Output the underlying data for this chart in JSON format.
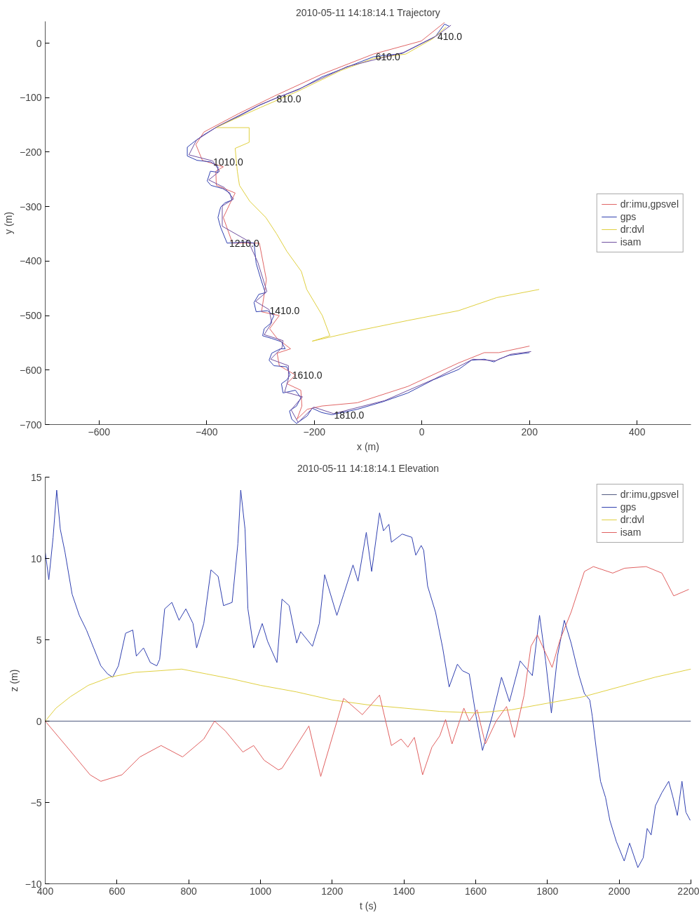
{
  "chart_data": [
    {
      "type": "line",
      "title": "2010-05-11 14:18:14.1 Trajectory",
      "xlabel": "x (m)",
      "ylabel": "y (m)",
      "xlim": [
        -700,
        500
      ],
      "ylim": [
        -700,
        40
      ],
      "xticks": [
        -600,
        -400,
        -200,
        0,
        200,
        400
      ],
      "yticks": [
        -700,
        -600,
        -500,
        -400,
        -300,
        -200,
        -100,
        0
      ],
      "legend": "right",
      "series": [
        {
          "name": "dr:imu,gpsvel",
          "color": "#e06666",
          "x": [
            42,
            -1,
            -90,
            -186,
            -274,
            -340,
            -405,
            -420,
            -408,
            -369,
            -383,
            -382,
            -347,
            -356,
            -369,
            -352,
            -302,
            -289,
            -293,
            -298,
            -265,
            -283,
            -269,
            -244,
            -269,
            -265,
            -235,
            -251,
            -225,
            -223,
            -232,
            -213,
            -186,
            -120,
            -26,
            68,
            116,
            143,
            200
          ],
          "values": [
            38,
            4,
            -20,
            -57,
            -97,
            -129,
            -163,
            -186,
            -215,
            -227,
            -235,
            -261,
            -275,
            -293,
            -320,
            -367,
            -367,
            -434,
            -461,
            -493,
            -500,
            -524,
            -542,
            -561,
            -569,
            -592,
            -609,
            -625,
            -637,
            -666,
            -690,
            -672,
            -666,
            -660,
            -630,
            -587,
            -568,
            -568,
            -556
          ]
        },
        {
          "name": "gps",
          "color": "#3040b0",
          "x": [
            51,
            42,
            25,
            -1,
            -37,
            -90,
            -142,
            -186,
            -229,
            -274,
            -304,
            -340,
            -383,
            -405,
            -422,
            -436,
            -436,
            -418,
            -392,
            -379,
            -379,
            -393,
            -399,
            -392,
            -370,
            -357,
            -353,
            -366,
            -374,
            -379,
            -374,
            -362,
            -326,
            -312,
            -308,
            -299,
            -291,
            -303,
            -312,
            -308,
            -287,
            -275,
            -282,
            -293,
            -296,
            -279,
            -261,
            -254,
            -263,
            -279,
            -284,
            -275,
            -251,
            -245,
            -251,
            -261,
            -258,
            -235,
            -225,
            -233,
            -246,
            -242,
            -233,
            -213,
            -204,
            -186,
            -167,
            -120,
            -72,
            -26,
            21,
            68,
            92,
            116,
            134,
            143,
            162,
            200
          ],
          "values": [
            31,
            35,
            12,
            -1,
            -19,
            -25,
            -45,
            -62,
            -85,
            -102,
            -115,
            -134,
            -155,
            -168,
            -180,
            -191,
            -207,
            -215,
            -218,
            -227,
            -237,
            -235,
            -253,
            -261,
            -267,
            -275,
            -288,
            -293,
            -301,
            -320,
            -338,
            -367,
            -365,
            -367,
            -404,
            -434,
            -458,
            -461,
            -476,
            -493,
            -491,
            -500,
            -515,
            -524,
            -537,
            -542,
            -548,
            -561,
            -561,
            -569,
            -582,
            -592,
            -594,
            -609,
            -618,
            -625,
            -642,
            -637,
            -651,
            -666,
            -675,
            -690,
            -698,
            -684,
            -670,
            -678,
            -682,
            -672,
            -658,
            -642,
            -618,
            -599,
            -582,
            -580,
            -585,
            -580,
            -573,
            -568
          ]
        },
        {
          "name": "dr:dvl",
          "color": "#e0d040",
          "x": [
            45,
            20,
            -30,
            -90,
            -150,
            -230,
            -300,
            -350,
            -383,
            -321,
            -321,
            -347,
            -343,
            -339,
            -320,
            -290,
            -270,
            -251,
            -224,
            -214,
            -185,
            -171,
            -204,
            -120,
            -26,
            68,
            139,
            218
          ],
          "values": [
            30,
            8,
            -20,
            -28,
            -50,
            -88,
            -118,
            -140,
            -155,
            -155,
            -182,
            -193,
            -235,
            -261,
            -290,
            -320,
            -350,
            -382,
            -419,
            -452,
            -500,
            -537,
            -547,
            -528,
            -509,
            -491,
            -467,
            -452
          ]
        },
        {
          "name": "isam",
          "color": "#7050a0",
          "x": [
            54,
            28,
            -34,
            -139,
            -226,
            -301,
            -380,
            -419,
            -433,
            -389,
            -376,
            -396,
            -367,
            -350,
            -371,
            -371,
            -323,
            -305,
            -288,
            -309,
            -284,
            -279,
            -293,
            -258,
            -260,
            -281,
            -248,
            -248,
            -255,
            -222,
            -243,
            -230,
            -201,
            -164,
            -69,
            24,
            95,
            137,
            165,
            203
          ],
          "values": [
            33,
            14,
            -17,
            -43,
            -83,
            -113,
            -153,
            -178,
            -205,
            -216,
            -235,
            -251,
            -265,
            -286,
            -299,
            -336,
            -363,
            -402,
            -456,
            -474,
            -489,
            -513,
            -535,
            -546,
            -559,
            -580,
            -592,
            -616,
            -640,
            -649,
            -673,
            -696,
            -668,
            -680,
            -656,
            -616,
            -580,
            -583,
            -571,
            -566
          ]
        }
      ],
      "annotations": [
        {
          "text": "410.0",
          "x": 25,
          "y": 12
        },
        {
          "text": "610.0",
          "x": -90,
          "y": -25
        },
        {
          "text": "810.0",
          "x": -274,
          "y": -102
        },
        {
          "text": "1010.0",
          "x": -392,
          "y": -218
        },
        {
          "text": "1210.0",
          "x": -362,
          "y": -367
        },
        {
          "text": "1410.0",
          "x": -287,
          "y": -491
        },
        {
          "text": "1610.0",
          "x": -245,
          "y": -609
        },
        {
          "text": "1810.0",
          "x": -167,
          "y": -682
        }
      ]
    },
    {
      "type": "line",
      "title": "2010-05-11 14:18:14.1 Elevation",
      "xlabel": "t (s)",
      "ylabel": "z (m)",
      "xlim": [
        400,
        2200
      ],
      "ylim": [
        -10,
        15
      ],
      "xticks": [
        400,
        600,
        800,
        1000,
        1200,
        1400,
        1600,
        1800,
        2000,
        2200
      ],
      "yticks": [
        -10,
        -5,
        0,
        5,
        10,
        15
      ],
      "legend": "top right",
      "series": [
        {
          "name": "dr:imu,gpsvel",
          "color": "#505a80",
          "x": [
            400,
            2200
          ],
          "values": [
            0,
            0
          ]
        },
        {
          "name": "gps",
          "color": "#3040b0",
          "x": [
            400,
            410,
            422,
            432,
            442,
            455,
            475,
            495,
            515,
            535,
            555,
            574,
            588,
            604,
            624,
            644,
            654,
            674,
            693,
            711,
            719,
            733,
            753,
            773,
            792,
            812,
            822,
            842,
            862,
            882,
            897,
            921,
            937,
            945,
            957,
            965,
            981,
            1005,
            1020,
            1046,
            1060,
            1080,
            1101,
            1112,
            1145,
            1164,
            1179,
            1213,
            1232,
            1258,
            1272,
            1295,
            1310,
            1332,
            1343,
            1358,
            1365,
            1395,
            1422,
            1433,
            1448,
            1455,
            1466,
            1488,
            1508,
            1526,
            1549,
            1563,
            1582,
            1601,
            1619,
            1646,
            1672,
            1694,
            1724,
            1758,
            1778,
            1795,
            1811,
            1828,
            1847,
            1866,
            1888,
            1903,
            1918,
            1925,
            1936,
            1948,
            1962,
            1974,
            1992,
            2014,
            2029,
            2052,
            2067,
            2078,
            2089,
            2101,
            2119,
            2138,
            2149,
            2162,
            2175,
            2186,
            2198
          ],
          "values": [
            10.4,
            8.7,
            11.3,
            14.2,
            11.8,
            10.4,
            7.8,
            6.5,
            5.6,
            4.5,
            3.4,
            2.9,
            2.7,
            3.4,
            5.4,
            5.6,
            4.0,
            4.5,
            3.6,
            3.4,
            3.8,
            6.9,
            7.3,
            6.2,
            6.9,
            6.0,
            4.5,
            6.0,
            9.3,
            8.9,
            7.1,
            7.3,
            10.9,
            14.2,
            11.8,
            6.9,
            4.5,
            6.0,
            4.9,
            3.6,
            7.5,
            7.1,
            4.8,
            5.5,
            4.6,
            6.0,
            9.0,
            6.5,
            7.8,
            9.6,
            8.6,
            11.6,
            9.2,
            12.8,
            11.7,
            12.1,
            11.0,
            11.5,
            11.3,
            10.2,
            10.8,
            10.5,
            8.3,
            6.7,
            4.5,
            2.1,
            3.5,
            3.1,
            2.9,
            0.3,
            -1.8,
            0.3,
            2.7,
            1.2,
            3.7,
            2.8,
            6.5,
            3.7,
            0.5,
            4.0,
            6.2,
            4.8,
            2.8,
            1.7,
            1.3,
            0.3,
            -1.7,
            -3.7,
            -4.7,
            -6.1,
            -7.4,
            -8.6,
            -7.5,
            -9.0,
            -8.4,
            -6.6,
            -7.0,
            -5.2,
            -4.4,
            -3.7,
            -4.6,
            -5.8,
            -3.7,
            -5.6,
            -6.1
          ]
        },
        {
          "name": "dr:dvl",
          "color": "#e0d040",
          "x": [
            400,
            430,
            470,
            520,
            580,
            650,
            720,
            780,
            850,
            920,
            1000,
            1100,
            1200,
            1300,
            1400,
            1500,
            1600,
            1700,
            1800,
            1900,
            2000,
            2100,
            2200
          ],
          "values": [
            0,
            0.8,
            1.5,
            2.2,
            2.7,
            3.0,
            3.1,
            3.2,
            2.9,
            2.6,
            2.2,
            1.8,
            1.3,
            1.0,
            0.8,
            0.6,
            0.5,
            0.7,
            1.1,
            1.5,
            2.1,
            2.7,
            3.2
          ]
        },
        {
          "name": "isam",
          "color": "#e06060",
          "x": [
            400,
            465,
            525,
            555,
            614,
            664,
            723,
            783,
            842,
            872,
            902,
            951,
            981,
            1010,
            1050,
            1060,
            1135,
            1168,
            1232,
            1284,
            1332,
            1365,
            1392,
            1411,
            1429,
            1452,
            1478,
            1500,
            1516,
            1534,
            1567,
            1582,
            1604,
            1627,
            1657,
            1686,
            1708,
            1735,
            1754,
            1772,
            1813,
            1835,
            1866,
            1903,
            1928,
            1982,
            2015,
            2075,
            2119,
            2152,
            2194
          ],
          "values": [
            0,
            -1.7,
            -3.3,
            -3.7,
            -3.3,
            -2.2,
            -1.5,
            -2.2,
            -1.1,
            0,
            -0.6,
            -1.9,
            -1.5,
            -2.4,
            -3.0,
            -2.9,
            -0.3,
            -3.4,
            1.4,
            0.4,
            1.6,
            -1.5,
            -1.1,
            -1.6,
            -1.0,
            -3.3,
            -1.6,
            -0.9,
            0.1,
            -1.4,
            0.8,
            0,
            0.7,
            -1.4,
            0,
            0.9,
            -1.0,
            1.6,
            4.6,
            5.3,
            3.3,
            5.0,
            6.7,
            9.2,
            9.5,
            9.1,
            9.4,
            9.5,
            9.1,
            7.7,
            8.1
          ]
        }
      ]
    }
  ]
}
